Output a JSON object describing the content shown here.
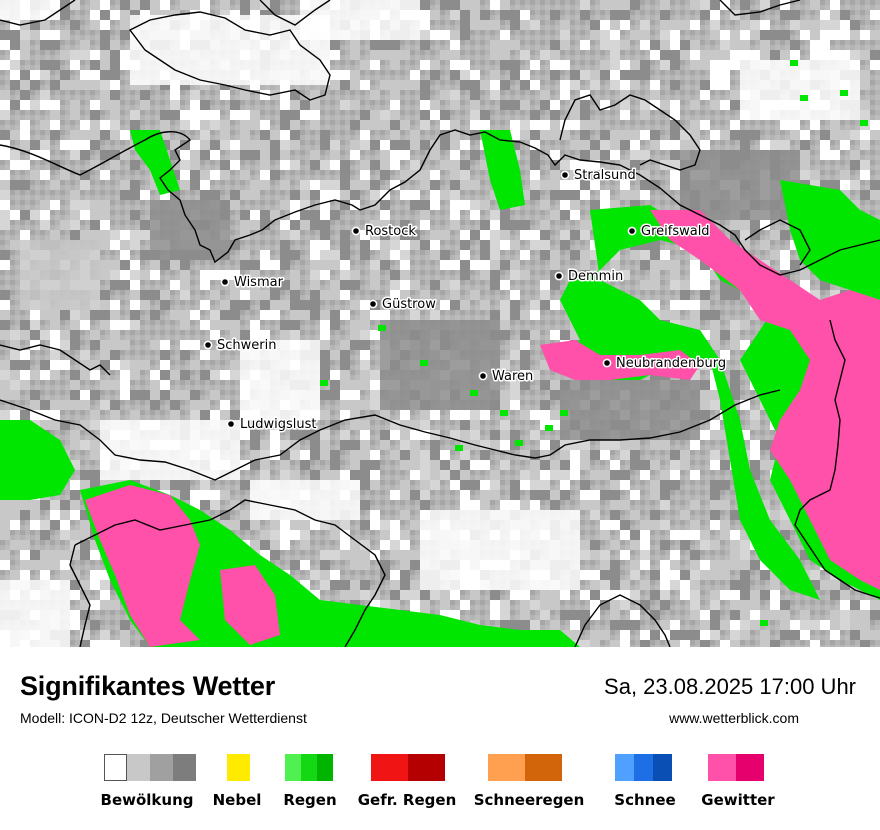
{
  "map": {
    "cities": [
      {
        "name": "Stralsund"
      },
      {
        "name": "Greifswald"
      },
      {
        "name": "Rostock"
      },
      {
        "name": "Wismar"
      },
      {
        "name": "Demmin"
      },
      {
        "name": "Güstrow"
      },
      {
        "name": "Schwerin"
      },
      {
        "name": "Neubrandenburg"
      },
      {
        "name": "Waren"
      },
      {
        "name": "Ludwigslust"
      }
    ]
  },
  "footer": {
    "title": "Signifikantes Wetter",
    "model": "Modell: ICON-D2 12z, Deutscher Wetterdienst",
    "datetime": "Sa, 23.08.2025 17:00 Uhr",
    "website": "www.wetterblick.com"
  },
  "legend": [
    {
      "label": "Bewölkung",
      "colors": [
        "#ffffff",
        "#c8c8c8",
        "#a0a0a0",
        "#7d7d7d"
      ]
    },
    {
      "label": "Nebel",
      "colors": [
        "#ffeb00"
      ]
    },
    {
      "label": "Regen",
      "colors": [
        "#50f050",
        "#14d814",
        "#00b400"
      ]
    },
    {
      "label": "Gefr. Regen",
      "colors": [
        "#f01414",
        "#b40000"
      ]
    },
    {
      "label": "Schneeregen",
      "colors": [
        "#ffa050",
        "#d2640a"
      ]
    },
    {
      "label": "Schnee",
      "colors": [
        "#50a0ff",
        "#1e6ee6",
        "#0a50b4"
      ]
    },
    {
      "label": "Gewitter",
      "colors": [
        "#ff50aa",
        "#e6006e"
      ]
    }
  ],
  "colors": {
    "cloud_light": "#c8c8c8",
    "cloud_mid": "#a0a0a0",
    "cloud_dark": "#8c8c8c",
    "rain": "#00e600",
    "thunderstorm": "#ff50aa",
    "border": "#000000"
  }
}
